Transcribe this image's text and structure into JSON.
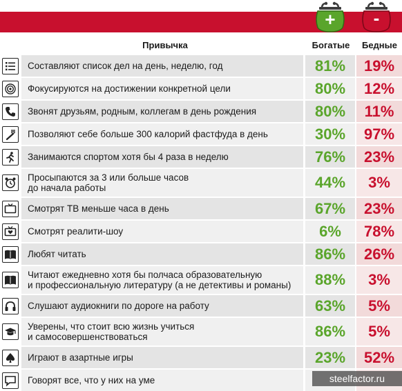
{
  "header": {
    "habit": "Привычка",
    "rich": "Богатые",
    "poor": "Бедные",
    "rich_badge": "+",
    "poor_badge": "-"
  },
  "colors": {
    "accent_red": "#c8102e",
    "rich_green": "#5aa52b"
  },
  "rows": [
    {
      "icon": "list-icon",
      "text": "Составляют список дел на день, неделю, год",
      "rich": "81%",
      "poor": "19%"
    },
    {
      "icon": "target-icon",
      "text": "Фокусируются на достижении конкретной цели",
      "rich": "80%",
      "poor": "12%"
    },
    {
      "icon": "phone-icon",
      "text": "Звонят друзьям, родным, коллегам в день рождения",
      "rich": "80%",
      "poor": "11%"
    },
    {
      "icon": "fork-icon",
      "text": "Позволяют себе больше 300 калорий фастфуда в день",
      "rich": "30%",
      "poor": "97%"
    },
    {
      "icon": "runner-icon",
      "text": "Занимаются спортом хотя бы 4 раза в неделю",
      "rich": "76%",
      "poor": "23%"
    },
    {
      "icon": "alarm-clock-icon",
      "text": "Просыпаются за 3 или больше часов\nдо начала работы",
      "rich": "44%",
      "poor": "3%"
    },
    {
      "icon": "tv-icon",
      "text": "Смотрят ТВ меньше часа в день",
      "rich": "67%",
      "poor": "23%"
    },
    {
      "icon": "tv-heart-icon",
      "text": "Смотрят реалити-шоу",
      "rich": "6%",
      "poor": "78%"
    },
    {
      "icon": "book-icon",
      "text": "Любят читать",
      "rich": "86%",
      "poor": "26%"
    },
    {
      "icon": "book-icon",
      "text": "Читают ежедневно хотя бы полчаса образовательную\nи профессиональную литературу (а не детективы и романы)",
      "rich": "88%",
      "poor": "3%"
    },
    {
      "icon": "headphones-icon",
      "text": "Слушают аудиокниги по дороге на работу",
      "rich": "63%",
      "poor": "5%"
    },
    {
      "icon": "graduation-cap-icon",
      "text": "Уверены, что стоит всю жизнь учиться\nи самосовершенствоваться",
      "rich": "86%",
      "poor": "5%"
    },
    {
      "icon": "spade-icon",
      "text": "Играют в азартные игры",
      "rich": "23%",
      "poor": "52%"
    },
    {
      "icon": "speech-icon",
      "text": "Говорят все, что у них на уме",
      "rich": "",
      "poor": ""
    }
  ],
  "watermark": "steelfactor.ru"
}
